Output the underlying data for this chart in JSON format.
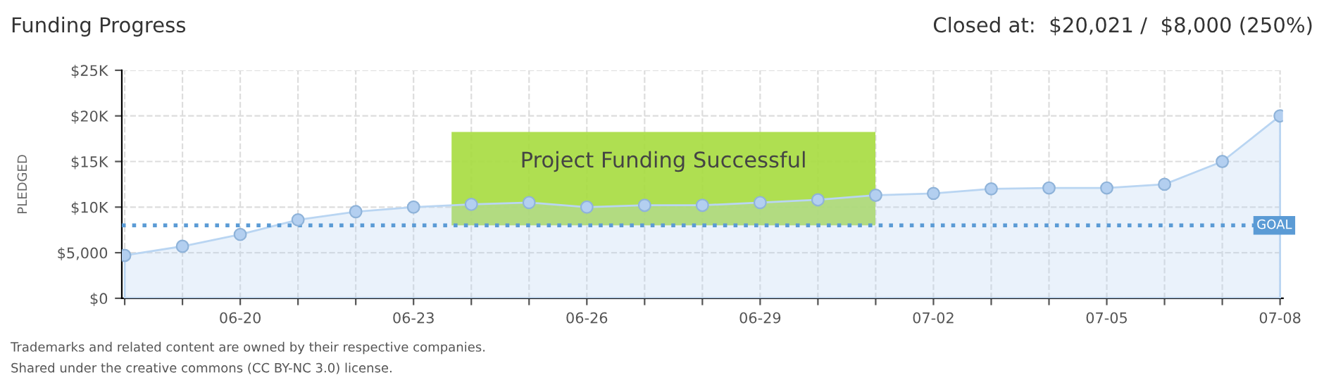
{
  "chart_data": {
    "type": "area",
    "title": "Funding Progress",
    "subtitle": "Closed at:  $20,021 /  $8,000 (250%)",
    "ylabel": "PLEDGED",
    "categories": [
      null,
      null,
      "06-20",
      null,
      null,
      "06-23",
      null,
      null,
      "06-26",
      null,
      null,
      "06-29",
      null,
      null,
      "07-02",
      null,
      null,
      "07-05",
      null,
      null,
      "07-08"
    ],
    "series": [
      {
        "color": "#b9d5f2",
        "values": [
          4700,
          5700,
          7000,
          8600,
          9500,
          10000,
          10300,
          10500,
          10000,
          10200,
          10200,
          10500,
          10800,
          11300,
          11500,
          12000,
          12100,
          12100,
          12500,
          15000,
          20000
        ]
      }
    ],
    "ylim": [
      0,
      25000
    ],
    "yticks": [
      {
        "value": 0,
        "label": "$0"
      },
      {
        "value": 5000,
        "label": "$5,000"
      },
      {
        "value": 10000,
        "label": "$10K"
      },
      {
        "value": 15000,
        "label": "$15K"
      },
      {
        "value": 20000,
        "label": "$20K"
      },
      {
        "value": 25000,
        "label": "$25K"
      }
    ],
    "grid": true,
    "marker": "circle",
    "ref_lines": [
      {
        "axis": "y",
        "value": 8000,
        "label": "GOAL",
        "color": "#5b9bd5",
        "line_style": "dotted"
      }
    ],
    "annotations": [
      "Project Funding Successful",
      "Trademarks and related content are owned by their respective companies.",
      "Shared under the creative commons (CC BY-NC 3.0) license."
    ]
  }
}
